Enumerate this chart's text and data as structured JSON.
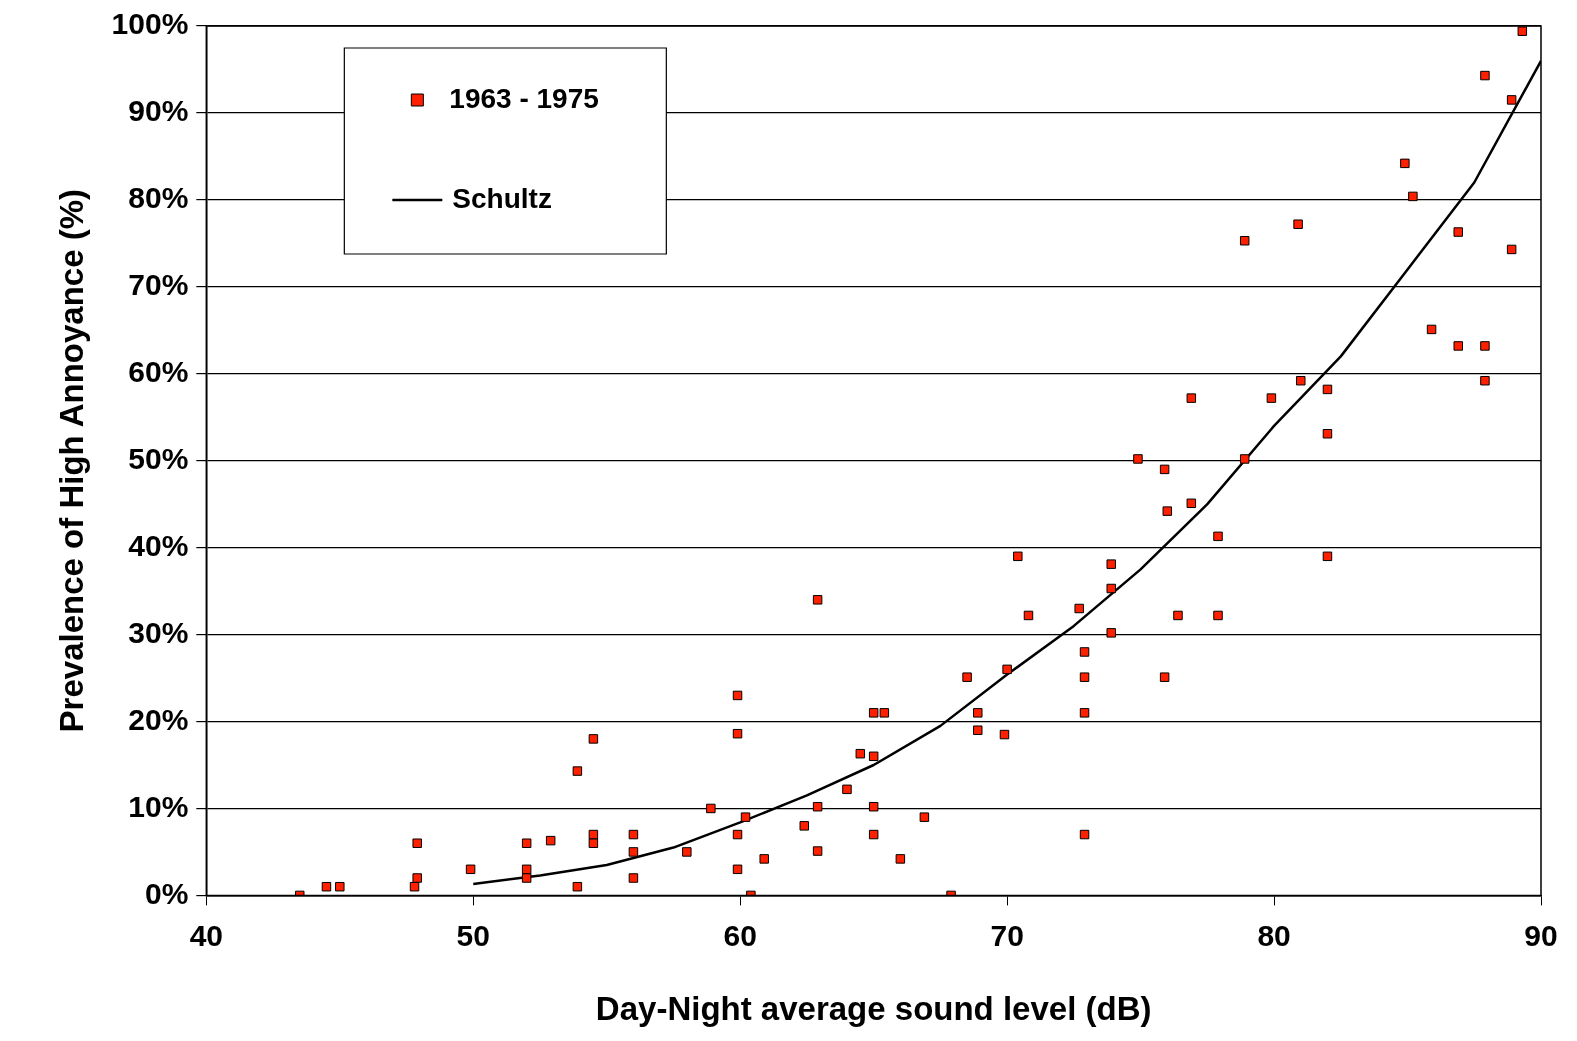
{
  "chart_data": {
    "type": "scatter",
    "xlabel": "Day-Night average sound level (dB)",
    "ylabel": "Prevalence of High Annoyance (%)",
    "xlim": [
      40,
      90
    ],
    "xticks": [
      40,
      50,
      60,
      70,
      80,
      90
    ],
    "ylim": [
      0,
      100
    ],
    "yticks": [
      {
        "value": 0,
        "label": "0%"
      },
      {
        "value": 10,
        "label": "10%"
      },
      {
        "value": 20,
        "label": "20%"
      },
      {
        "value": 30,
        "label": "30%"
      },
      {
        "value": 40,
        "label": "40%"
      },
      {
        "value": 50,
        "label": "50%"
      },
      {
        "value": 60,
        "label": "60%"
      },
      {
        "value": 70,
        "label": "70%"
      },
      {
        "value": 80,
        "label": "80%"
      },
      {
        "value": 90,
        "label": "90%"
      },
      {
        "value": 100,
        "label": "100%"
      }
    ],
    "grid": "y",
    "legend": "top left",
    "series": [
      {
        "name": "1963 - 1975",
        "type": "scatter",
        "marker": "square",
        "color": "#ff2000",
        "x": [
          43.5,
          44.5,
          45,
          47.8,
          47.9,
          47.9,
          49.9,
          52,
          52,
          52,
          52.9,
          53.9,
          53.9,
          54.5,
          54.5,
          54.5,
          56,
          56,
          56,
          58,
          58.9,
          59.9,
          59.9,
          59.9,
          59.9,
          60.2,
          60.4,
          60.9,
          62.4,
          62.9,
          62.9,
          62.9,
          64,
          64.5,
          65,
          65,
          65.4,
          65,
          65,
          66,
          66.9,
          67.9,
          68.5,
          68.9,
          68.9,
          69.9,
          70,
          70.4,
          70.8,
          72.7,
          72.9,
          72.9,
          72.9,
          72.9,
          73.9,
          73.9,
          73.9,
          74.9,
          75.9,
          76,
          75.9,
          76.4,
          76.9,
          76.9,
          77.9,
          77.9,
          78.9,
          78.9,
          79.9,
          80.9,
          81,
          82,
          82,
          82,
          84.9,
          85.2,
          85.9,
          86.9,
          86.9,
          87.9,
          87.9,
          87.9,
          88.9,
          88.9,
          89.3
        ],
        "values": [
          0,
          1,
          1,
          1,
          2,
          6,
          3,
          6,
          3,
          2,
          6.3,
          14.3,
          1,
          18,
          7,
          6,
          7,
          5,
          2,
          5,
          10,
          23,
          18.6,
          7,
          3,
          9,
          0,
          4.2,
          8,
          34,
          10.2,
          5.1,
          12.2,
          16.3,
          16,
          21,
          21,
          10.2,
          7,
          4.2,
          9,
          0,
          25.1,
          21,
          19,
          18.5,
          26,
          39,
          32.2,
          33,
          28,
          25.1,
          21,
          7,
          38.1,
          35.3,
          30.2,
          50.2,
          49,
          44.2,
          25.1,
          32.2,
          57.2,
          45.1,
          41.3,
          32.2,
          75.3,
          50.2,
          57.2,
          77.2,
          59.2,
          58.2,
          53.1,
          39,
          84.2,
          80.4,
          65.1,
          76.3,
          63.2,
          94.3,
          63.2,
          59.2,
          74.3,
          91.5,
          99.4
        ]
      },
      {
        "name": "Schultz",
        "type": "line",
        "marker": "none",
        "color": "#000000",
        "x": [
          50,
          52.5,
          55,
          57.5,
          60,
          62.5,
          65,
          67.5,
          70,
          72.5,
          75,
          77.5,
          80,
          82.5,
          85,
          87.5,
          90
        ],
        "values": [
          1.3,
          2.3,
          3.5,
          5.5,
          8.4,
          11.5,
          15,
          19.5,
          25.4,
          31,
          37.5,
          45,
          54,
          62,
          72,
          82,
          96
        ]
      }
    ]
  }
}
